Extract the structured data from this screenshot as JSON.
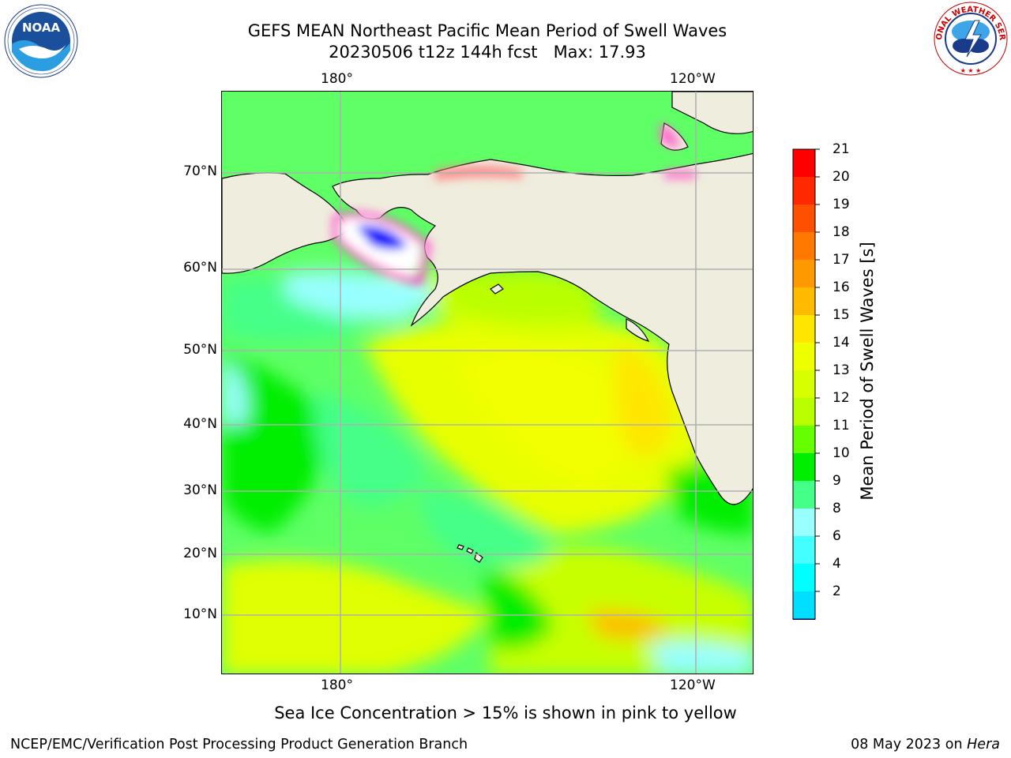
{
  "header": {
    "title_line1": "GEFS MEAN Northeast Pacific Mean Period of Swell Waves",
    "title_line2": "20230506 t12z 144h fcst   Max: 17.93"
  },
  "logos": {
    "left": {
      "name": "NOAA",
      "label": "NOAA",
      "ring_text": "NATIONAL OCEANIC AND ATMOSPHERIC ADMINISTRATION · U.S. DEPARTMENT OF COMMERCE"
    },
    "right": {
      "name": "National Weather Service",
      "ring_text": "NATIONAL WEATHER SERVICE"
    }
  },
  "map": {
    "region": "Northeast Pacific",
    "lon_labels_top": [
      "180°",
      "120°W"
    ],
    "lon_labels_bottom": [
      "180°",
      "120°W"
    ],
    "lat_labels": [
      "70°N",
      "60°N",
      "50°N",
      "40°N",
      "30°N",
      "20°N",
      "10°N"
    ],
    "land_color": "#efedde",
    "ocean_dominant_colors": [
      "#e6ff00",
      "#c8ff00",
      "#66ff00",
      "#00e600",
      "#44ff88",
      "#99ffff"
    ]
  },
  "colorbar": {
    "title": "Mean Period of Swell Waves [s]",
    "ticks": [
      "21",
      "20",
      "19",
      "18",
      "17",
      "16",
      "15",
      "14",
      "13",
      "12",
      "11",
      "10",
      "9",
      "8",
      "6",
      "4",
      "2"
    ],
    "colors_top_to_bottom": [
      "#ff0000",
      "#ff2800",
      "#ff5000",
      "#ff7800",
      "#ff9900",
      "#ffbb00",
      "#ffe600",
      "#eeff00",
      "#d8ff00",
      "#b9ff00",
      "#66ff00",
      "#00ee00",
      "#44ff88",
      "#99ffff",
      "#44ffff",
      "#00ffff",
      "#00dfff",
      "#0077ff"
    ],
    "extend_color": "#0000ff"
  },
  "annotation": "Sea Ice Concentration > 15% is shown in pink to yellow",
  "footer": {
    "left": "NCEP/EMC/Verification Post Processing Product Generation Branch",
    "right_date": "08 May 2023 on",
    "right_machine": "Hera"
  }
}
